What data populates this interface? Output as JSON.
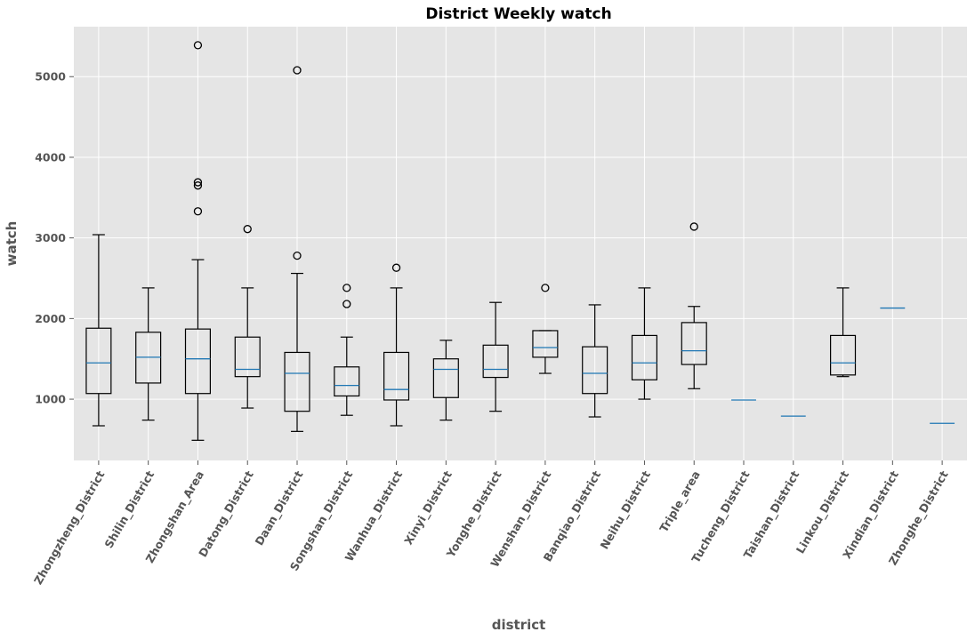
{
  "chart_data": {
    "type": "box",
    "title": "District Weekly watch",
    "xlabel": "district",
    "ylabel": "watch",
    "ylim": [
      240,
      5620
    ],
    "yticks": [
      1000,
      2000,
      3000,
      4000,
      5000
    ],
    "grid": true,
    "colors": {
      "plot_background": "#e5e5e5",
      "grid": "#ffffff",
      "box": "#000000",
      "median": "#1f77b4",
      "tick_text": "#555555"
    },
    "categories": [
      "Zhongzheng_District",
      "Shilin_District",
      "Zhongshan_Area",
      "Datong_District",
      "Daan_District",
      "Songshan_District",
      "Wanhua_District",
      "Xinyi_District",
      "Yonghe_District",
      "Wenshan_District",
      "Banqiao_District",
      "Neihu_District",
      "Triple_area",
      "Tucheng_District",
      "Taishan_District",
      "Linkou_District",
      "Xindian_District",
      "Zhonghe_District"
    ],
    "boxes": [
      {
        "whislo": 670,
        "q1": 1070,
        "med": 1450,
        "q3": 1880,
        "whishi": 3040,
        "fliers": []
      },
      {
        "whislo": 740,
        "q1": 1200,
        "med": 1520,
        "q3": 1830,
        "whishi": 2380,
        "fliers": []
      },
      {
        "whislo": 490,
        "q1": 1070,
        "med": 1500,
        "q3": 1870,
        "whishi": 2730,
        "fliers": [
          3330,
          3650,
          3690,
          5390
        ]
      },
      {
        "whislo": 890,
        "q1": 1280,
        "med": 1370,
        "q3": 1770,
        "whishi": 2380,
        "fliers": [
          3110
        ]
      },
      {
        "whislo": 600,
        "q1": 850,
        "med": 1320,
        "q3": 1580,
        "whishi": 2560,
        "fliers": [
          2780,
          5080
        ]
      },
      {
        "whislo": 800,
        "q1": 1040,
        "med": 1170,
        "q3": 1400,
        "whishi": 1770,
        "fliers": [
          2180,
          2380
        ]
      },
      {
        "whislo": 670,
        "q1": 990,
        "med": 1120,
        "q3": 1580,
        "whishi": 2380,
        "fliers": [
          2630
        ]
      },
      {
        "whislo": 740,
        "q1": 1020,
        "med": 1370,
        "q3": 1500,
        "whishi": 1730,
        "fliers": []
      },
      {
        "whislo": 850,
        "q1": 1270,
        "med": 1370,
        "q3": 1670,
        "whishi": 2200,
        "fliers": []
      },
      {
        "whislo": 1320,
        "q1": 1520,
        "med": 1640,
        "q3": 1850,
        "whishi": 1850,
        "fliers": [
          2380
        ]
      },
      {
        "whislo": 780,
        "q1": 1070,
        "med": 1320,
        "q3": 1650,
        "whishi": 2170,
        "fliers": []
      },
      {
        "whislo": 1000,
        "q1": 1240,
        "med": 1450,
        "q3": 1790,
        "whishi": 2380,
        "fliers": []
      },
      {
        "whislo": 1130,
        "q1": 1430,
        "med": 1600,
        "q3": 1950,
        "whishi": 2150,
        "fliers": [
          3140
        ]
      },
      {
        "whislo": 990,
        "q1": 990,
        "med": 990,
        "q3": 990,
        "whishi": 990,
        "fliers": []
      },
      {
        "whislo": 790,
        "q1": 790,
        "med": 790,
        "q3": 790,
        "whishi": 790,
        "fliers": []
      },
      {
        "whislo": 1280,
        "q1": 1300,
        "med": 1450,
        "q3": 1790,
        "whishi": 2380,
        "fliers": []
      },
      {
        "whislo": 2130,
        "q1": 2130,
        "med": 2130,
        "q3": 2130,
        "whishi": 2130,
        "fliers": []
      },
      {
        "whislo": 700,
        "q1": 700,
        "med": 700,
        "q3": 700,
        "whishi": 700,
        "fliers": []
      }
    ]
  }
}
